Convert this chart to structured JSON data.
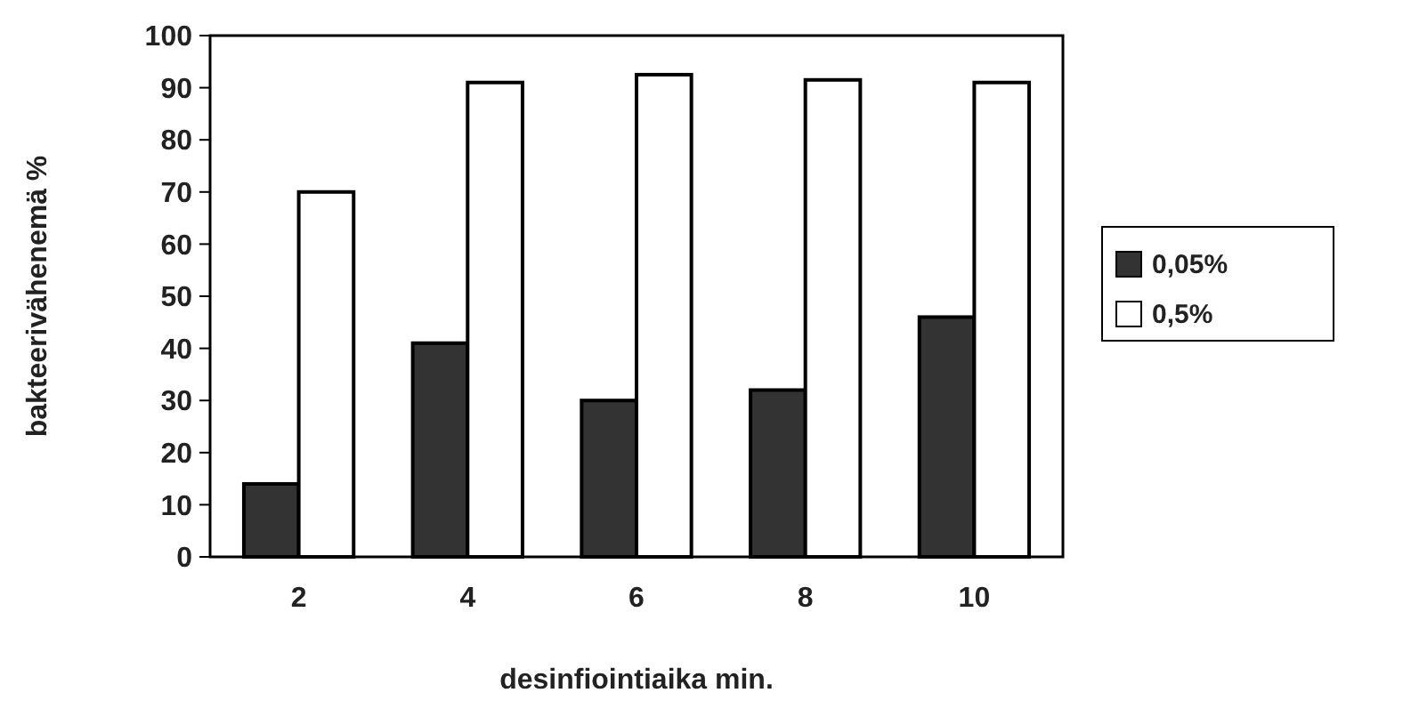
{
  "chart_data": {
    "type": "bar",
    "xlabel": "desinfiointiaika min.",
    "ylabel": "bakteerivähenemä %",
    "categories": [
      "2",
      "4",
      "6",
      "8",
      "10"
    ],
    "series": [
      {
        "name": "0,05%",
        "color": "#333333",
        "values": [
          14,
          41,
          30,
          32,
          46
        ]
      },
      {
        "name": "0,5%",
        "color": "#ffffff",
        "values": [
          70,
          91,
          92.5,
          91.5,
          91
        ]
      }
    ],
    "ylim": [
      0,
      100
    ],
    "yticks": [
      0,
      10,
      20,
      30,
      40,
      50,
      60,
      70,
      80,
      90,
      100
    ],
    "grid": false,
    "legend": "right"
  }
}
